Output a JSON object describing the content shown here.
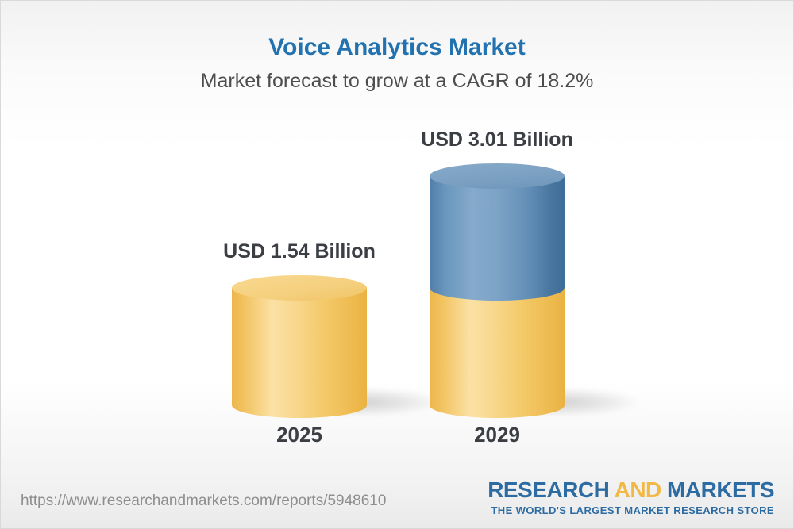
{
  "title": "Voice Analytics Market",
  "subtitle": "Market forecast to grow at a CAGR of 18.2%",
  "chart_data": {
    "type": "bar",
    "style": "3d-cylinder",
    "title": "Voice Analytics Market",
    "subtitle": "Market forecast to grow at a CAGR of 18.2%",
    "categories": [
      "2025",
      "2029"
    ],
    "series": [
      {
        "name": "Market size (USD Billion)",
        "values": [
          1.54,
          3.01
        ]
      }
    ],
    "unit": "USD Billion",
    "value_labels": [
      "USD 1.54 Billion",
      "USD 3.01 Billion"
    ],
    "cagr_percent": 18.2,
    "legend": "none",
    "axes": "none",
    "grid": false,
    "colors": {
      "base_segment_yellow": "#f3c766",
      "growth_segment_blue": "#5d88b2",
      "title_blue": "#2272b0",
      "subtitle_gray": "#4d4d4d",
      "label_dark": "#3b3e43"
    },
    "notes": "2029 bar is stacked: yellow base equals 2025 value (1.54), blue top segment shows growth up to 3.01"
  },
  "footer": {
    "url": "https://www.researchandmarkets.com/reports/5948610",
    "logo": {
      "word1": "RESEARCH",
      "word2": "AND",
      "word3": "MARKETS",
      "tagline": "THE WORLD'S LARGEST MARKET RESEARCH STORE",
      "blue": "#2d6ca2",
      "gold": "#f2b844"
    }
  }
}
